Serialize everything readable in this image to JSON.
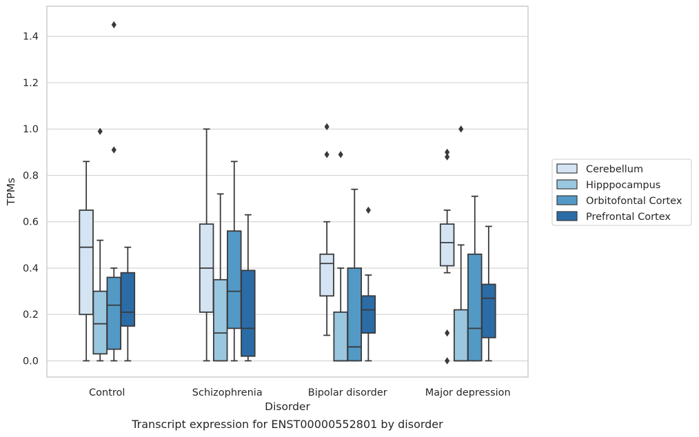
{
  "caption": "Transcript expression for ENST00000552801 by disorder",
  "chart_data": {
    "type": "boxplot",
    "xlabel": "Disorder",
    "ylabel": "TPMs",
    "ylim": [
      -0.07,
      1.53
    ],
    "yticks": [
      0.0,
      0.2,
      0.4,
      0.6,
      0.8,
      1.0,
      1.2,
      1.4
    ],
    "ytick_labels": [
      "0.0",
      "0.2",
      "0.4",
      "0.6",
      "0.8",
      "1.0",
      "1.2",
      "1.4"
    ],
    "grid": true,
    "legend_position": "right",
    "categories": [
      "Control",
      "Schizophrenia",
      "Bipolar disorder",
      "Major depression"
    ],
    "series": [
      {
        "name": "Cerebellum",
        "color": "#d4e4f3",
        "boxes": [
          {
            "whisker_low": 0.0,
            "q1": 0.2,
            "median": 0.49,
            "q3": 0.65,
            "whisker_high": 0.86,
            "outliers": []
          },
          {
            "whisker_low": 0.0,
            "q1": 0.21,
            "median": 0.4,
            "q3": 0.59,
            "whisker_high": 1.0,
            "outliers": []
          },
          {
            "whisker_low": 0.11,
            "q1": 0.28,
            "median": 0.42,
            "q3": 0.46,
            "whisker_high": 0.6,
            "outliers": [
              0.89,
              1.01
            ]
          },
          {
            "whisker_low": 0.38,
            "q1": 0.41,
            "median": 0.51,
            "q3": 0.59,
            "whisker_high": 0.65,
            "outliers": [
              0.0,
              0.12,
              0.88,
              0.9
            ]
          }
        ]
      },
      {
        "name": "Hipppocampus",
        "color": "#9ac7e0",
        "boxes": [
          {
            "whisker_low": 0.0,
            "q1": 0.03,
            "median": 0.16,
            "q3": 0.3,
            "whisker_high": 0.52,
            "outliers": [
              0.99
            ]
          },
          {
            "whisker_low": 0.0,
            "q1": 0.0,
            "median": 0.12,
            "q3": 0.35,
            "whisker_high": 0.72,
            "outliers": []
          },
          {
            "whisker_low": 0.0,
            "q1": 0.0,
            "median": 0.0,
            "q3": 0.21,
            "whisker_high": 0.4,
            "outliers": [
              0.89
            ]
          },
          {
            "whisker_low": 0.0,
            "q1": 0.0,
            "median": 0.0,
            "q3": 0.22,
            "whisker_high": 0.5,
            "outliers": [
              1.0
            ]
          }
        ]
      },
      {
        "name": "Orbitofontal Cortex",
        "color": "#5399c6",
        "boxes": [
          {
            "whisker_low": 0.0,
            "q1": 0.05,
            "median": 0.24,
            "q3": 0.36,
            "whisker_high": 0.4,
            "outliers": [
              0.91,
              1.45
            ]
          },
          {
            "whisker_low": 0.0,
            "q1": 0.14,
            "median": 0.3,
            "q3": 0.56,
            "whisker_high": 0.86,
            "outliers": []
          },
          {
            "whisker_low": 0.0,
            "q1": 0.0,
            "median": 0.06,
            "q3": 0.4,
            "whisker_high": 0.74,
            "outliers": []
          },
          {
            "whisker_low": 0.0,
            "q1": 0.0,
            "median": 0.14,
            "q3": 0.46,
            "whisker_high": 0.71,
            "outliers": []
          }
        ]
      },
      {
        "name": "Prefrontal Cortex",
        "color": "#2b6ca7",
        "boxes": [
          {
            "whisker_low": 0.0,
            "q1": 0.15,
            "median": 0.21,
            "q3": 0.38,
            "whisker_high": 0.49,
            "outliers": []
          },
          {
            "whisker_low": 0.0,
            "q1": 0.02,
            "median": 0.14,
            "q3": 0.39,
            "whisker_high": 0.63,
            "outliers": []
          },
          {
            "whisker_low": 0.0,
            "q1": 0.12,
            "median": 0.22,
            "q3": 0.28,
            "whisker_high": 0.37,
            "outliers": [
              0.65
            ]
          },
          {
            "whisker_low": 0.0,
            "q1": 0.1,
            "median": 0.27,
            "q3": 0.33,
            "whisker_high": 0.58,
            "outliers": []
          }
        ]
      }
    ]
  }
}
